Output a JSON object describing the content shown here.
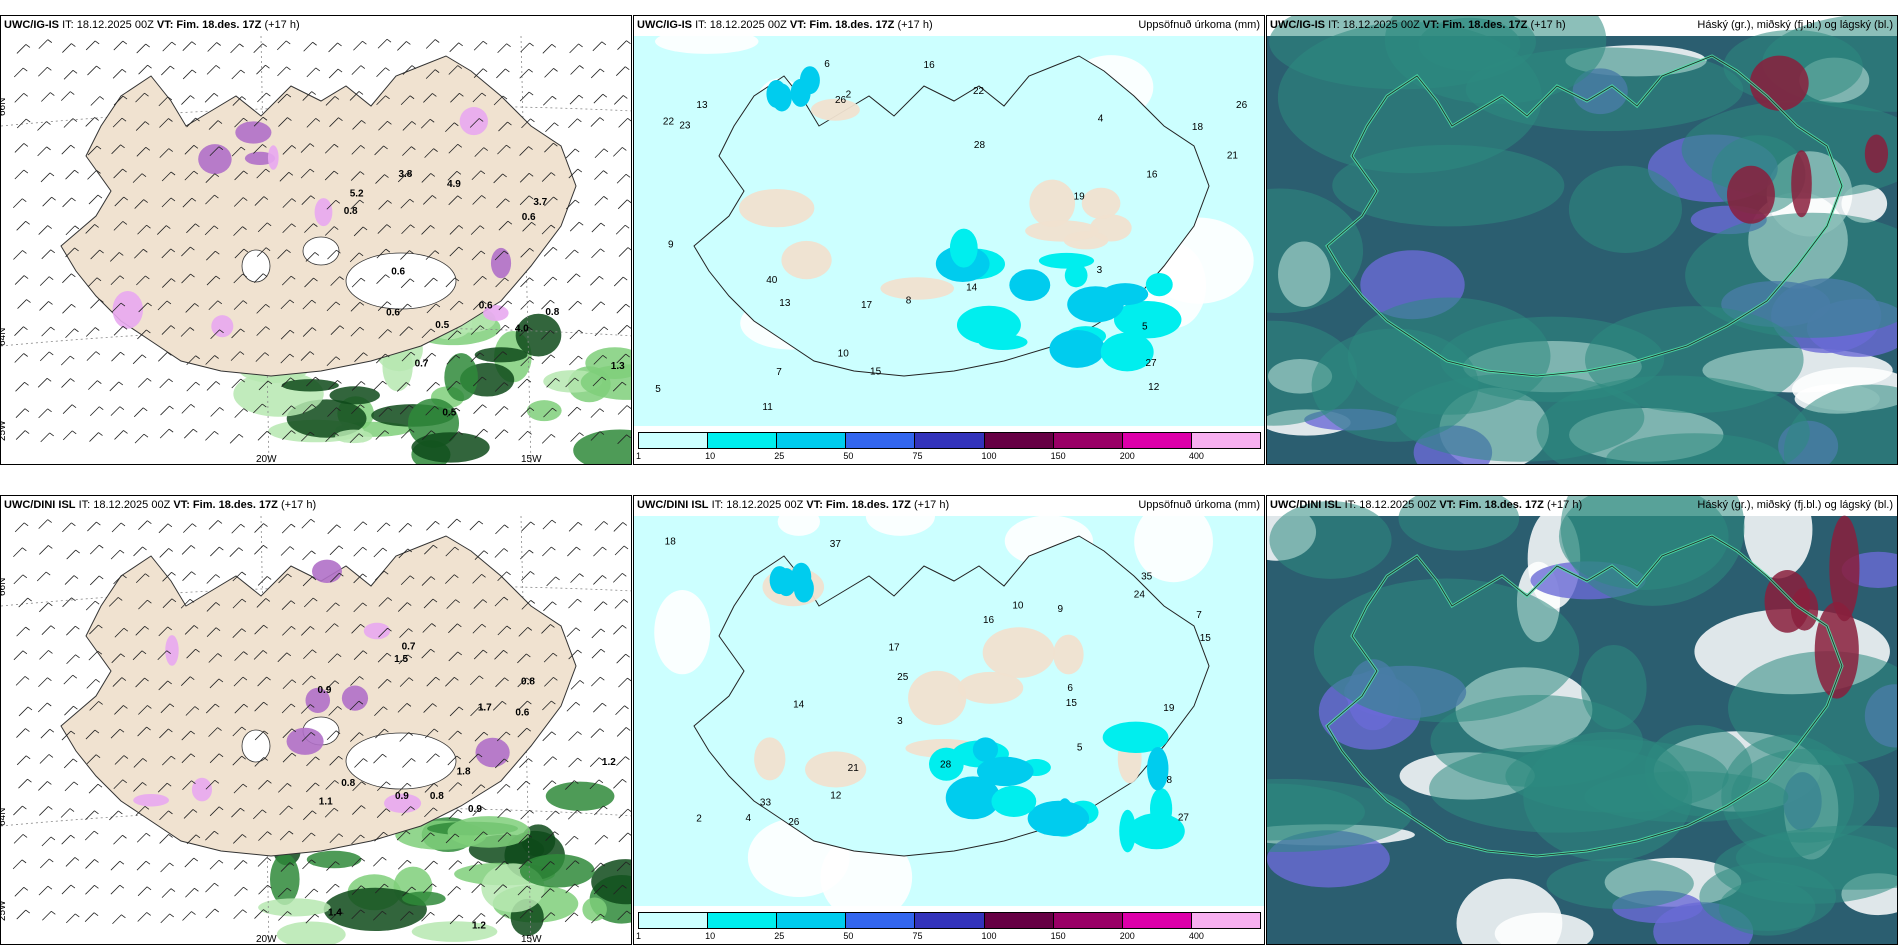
{
  "panels": [
    {
      "id": "p1",
      "row": 0,
      "col": 0,
      "type": "windprecip",
      "model": "UWC/IG-IS",
      "it": "IT: 18.12.2025 00Z",
      "vt": "VT: Fim. 18.des. 17Z",
      "lead": "(+17 h)",
      "right": "",
      "lat_labels": [
        "66N",
        "64N",
        "25W"
      ],
      "lon_labels": [
        "20W",
        "15W"
      ],
      "values": [
        "0.6",
        "0.8",
        "0.6",
        "0.5",
        "0.6",
        "0.7",
        "0.8",
        "1.3",
        "0.5",
        "4.0",
        "3.7",
        "3.8",
        "4.9",
        "5.2",
        "0.6"
      ]
    },
    {
      "id": "p2",
      "row": 0,
      "col": 1,
      "type": "accum",
      "model": "UWC/IG-IS",
      "it": "IT: 18.12.2025 00Z",
      "vt": "VT: Fim. 18.des. 17Z",
      "lead": "(+17 h)",
      "right": "Uppsöfnuð úrkoma (mm)",
      "values": [
        "2",
        "5",
        "10",
        "11",
        "16",
        "22",
        "19",
        "40",
        "26",
        "13",
        "15",
        "21",
        "23",
        "26",
        "27",
        "28",
        "17",
        "18",
        "22",
        "12",
        "14",
        "16",
        "13",
        "9",
        "6",
        "8",
        "4",
        "3",
        "7",
        "5"
      ]
    },
    {
      "id": "p3",
      "row": 0,
      "col": 2,
      "type": "cloud",
      "model": "UWC/IG-IS",
      "it": "IT: 18.12.2025 00Z",
      "vt": "VT: Fim. 18.des. 17Z",
      "lead": "(+17 h)",
      "right": "Háský (gr.), miðský (fj.bl.) og lágský (bl.)"
    },
    {
      "id": "p4",
      "row": 1,
      "col": 0,
      "type": "windprecip",
      "model": "UWC/DINI ISL",
      "it": "IT: 18.12.2025 00Z",
      "vt": "VT: Fim. 18.des. 17Z",
      "lead": "(+17 h)",
      "right": "",
      "lat_labels": [
        "66N",
        "64N",
        "25W"
      ],
      "lon_labels": [
        "20W",
        "15W"
      ],
      "values": [
        "0.7",
        "0.8",
        "1.2",
        "0.8",
        "0.9",
        "0.8",
        "0.9",
        "0.6",
        "1.1",
        "1.7",
        "1.8",
        "1.4",
        "1.5",
        "0.9",
        "1.2"
      ]
    },
    {
      "id": "p5",
      "row": 1,
      "col": 1,
      "type": "accum",
      "model": "UWC/DINI ISL",
      "it": "IT: 18.12.2025 00Z",
      "vt": "VT: Fim. 18.des. 17Z",
      "lead": "(+17 h)",
      "right": "Uppsöfnuð úrkoma (mm)",
      "values": [
        "2",
        "5",
        "10",
        "15",
        "27",
        "24",
        "37",
        "28",
        "16",
        "26",
        "19",
        "33",
        "35",
        "21",
        "18",
        "17",
        "14",
        "25",
        "12",
        "15",
        "9",
        "8",
        "6",
        "4",
        "3",
        "7"
      ]
    },
    {
      "id": "p6",
      "row": 1,
      "col": 2,
      "type": "cloud",
      "model": "UWC/DINI ISL",
      "it": "IT: 18.12.2025 00Z",
      "vt": "VT: Fim. 18.des. 17Z",
      "lead": "(+17 h)",
      "right": "Háský (gr.), miðský (fj.bl.) og lágský (bl.)"
    }
  ],
  "colorbar": {
    "ticks": [
      "1",
      "10",
      "25",
      "50",
      "75",
      "100",
      "150",
      "200",
      "400"
    ],
    "colors": [
      "#ccffff",
      "#00eeee",
      "#00ccee",
      "#3366ee",
      "#3333bb",
      "#660044",
      "#990066",
      "#dd00aa",
      "#f7b0f0"
    ]
  },
  "colors": {
    "land": "#f0e2d0",
    "ocean_accum": "#ccffff",
    "cloud_high": "#2e8b7f",
    "cloud_mid": "#6a6ad6",
    "cloud_low": "#2b5e70"
  }
}
